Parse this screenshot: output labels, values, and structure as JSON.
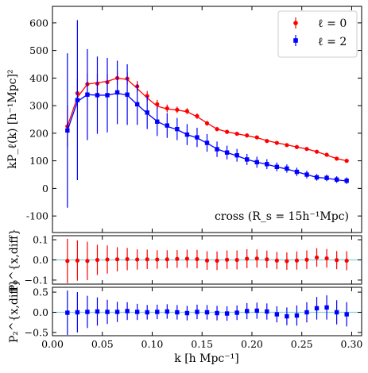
{
  "chart_data": [
    {
      "type": "line",
      "panel": "main",
      "ylabel": "kP_ℓ(k) [h⁻¹Mpc]²",
      "xlim": [
        0.0,
        0.31
      ],
      "ylim": [
        -160,
        660
      ],
      "yticks": [
        -100,
        0,
        100,
        200,
        300,
        400,
        500,
        600
      ],
      "annotation": "cross (R_s = 15h⁻¹Mpc)",
      "legend_position": "top-right",
      "series": [
        {
          "name": "ℓ = 0",
          "color": "#ff0000",
          "marker": "circle",
          "x": [
            0.015,
            0.025,
            0.035,
            0.045,
            0.055,
            0.065,
            0.075,
            0.085,
            0.095,
            0.105,
            0.115,
            0.125,
            0.135,
            0.145,
            0.155,
            0.165,
            0.175,
            0.185,
            0.195,
            0.205,
            0.215,
            0.225,
            0.235,
            0.245,
            0.255,
            0.265,
            0.275,
            0.285,
            0.295
          ],
          "y": [
            225,
            345,
            378,
            380,
            385,
            400,
            398,
            370,
            335,
            305,
            290,
            285,
            280,
            262,
            236,
            215,
            205,
            198,
            192,
            185,
            172,
            165,
            157,
            150,
            143,
            133,
            122,
            108,
            100
          ],
          "yerr": [
            75,
            50,
            40,
            35,
            30,
            25,
            22,
            20,
            18,
            16,
            14,
            12,
            11,
            10,
            9,
            8,
            8,
            7,
            7,
            6,
            6,
            6,
            5,
            5,
            5,
            5,
            5,
            5,
            4
          ],
          "model": [
            225,
            330,
            378,
            383,
            388,
            400,
            395,
            362,
            328,
            298,
            288,
            284,
            278,
            260,
            237,
            215,
            205,
            198,
            191,
            184,
            173,
            165,
            158,
            150,
            143,
            133,
            121,
            108,
            100
          ]
        },
        {
          "name": "ℓ = 2",
          "color": "#0000ff",
          "marker": "square",
          "x": [
            0.015,
            0.025,
            0.035,
            0.045,
            0.055,
            0.065,
            0.075,
            0.085,
            0.095,
            0.105,
            0.115,
            0.125,
            0.135,
            0.145,
            0.155,
            0.165,
            0.175,
            0.185,
            0.195,
            0.205,
            0.215,
            0.225,
            0.235,
            0.245,
            0.255,
            0.265,
            0.275,
            0.285,
            0.295
          ],
          "y": [
            210,
            320,
            340,
            338,
            338,
            348,
            340,
            305,
            275,
            242,
            228,
            215,
            195,
            185,
            165,
            142,
            130,
            120,
            105,
            95,
            88,
            78,
            72,
            60,
            50,
            40,
            38,
            32,
            28
          ],
          "yerr": [
            280,
            290,
            165,
            140,
            135,
            115,
            110,
            75,
            60,
            52,
            45,
            40,
            38,
            35,
            32,
            28,
            25,
            23,
            20,
            20,
            18,
            16,
            15,
            15,
            14,
            12,
            12,
            12,
            12
          ],
          "model": [
            210,
            315,
            340,
            338,
            338,
            345,
            338,
            304,
            272,
            243,
            225,
            213,
            195,
            183,
            164,
            143,
            130,
            118,
            105,
            95,
            87,
            78,
            70,
            60,
            50,
            40,
            37,
            31,
            27
          ]
        }
      ]
    },
    {
      "type": "scatter",
      "panel": "residual-0",
      "ylabel": "P₀^{x,diff}",
      "ylim": [
        -0.12,
        0.12
      ],
      "yticks": [
        -0.1,
        0.0,
        0.1
      ],
      "color": "#ff0000",
      "marker": "circle",
      "reference_line": {
        "y": 0.0,
        "color": "#7fd4d4"
      },
      "x": [
        0.015,
        0.025,
        0.035,
        0.045,
        0.055,
        0.065,
        0.075,
        0.085,
        0.095,
        0.105,
        0.115,
        0.125,
        0.135,
        0.145,
        0.155,
        0.165,
        0.175,
        0.185,
        0.195,
        0.205,
        0.215,
        0.225,
        0.235,
        0.245,
        0.255,
        0.265,
        0.275,
        0.285,
        0.295
      ],
      "y": [
        -0.005,
        -0.003,
        -0.005,
        0.0,
        0.002,
        0.003,
        0.004,
        0.002,
        0.003,
        0.002,
        0.003,
        0.005,
        0.006,
        0.004,
        -0.003,
        -0.004,
        0.001,
        0.0,
        0.006,
        0.007,
        0.003,
        -0.003,
        -0.006,
        -0.003,
        0.001,
        0.012,
        0.008,
        -0.001,
        -0.004
      ],
      "yerr": [
        0.11,
        0.1,
        0.095,
        0.075,
        0.07,
        0.06,
        0.055,
        0.05,
        0.048,
        0.046,
        0.045,
        0.044,
        0.045,
        0.046,
        0.046,
        0.046,
        0.046,
        0.047,
        0.047,
        0.045,
        0.043,
        0.043,
        0.043,
        0.045,
        0.046,
        0.046,
        0.046,
        0.045,
        0.047
      ]
    },
    {
      "type": "scatter",
      "panel": "residual-2",
      "xlabel": "k [h Mpc⁻¹]",
      "ylabel": "P₂^{x,diff}",
      "ylim": [
        -0.58,
        0.62
      ],
      "yticks": [
        -0.5,
        0.0,
        0.5
      ],
      "xticks": [
        0.0,
        0.05,
        0.1,
        0.15,
        0.2,
        0.25,
        0.3
      ],
      "xtick_labels": [
        "0.00",
        "0.05",
        "0.10",
        "0.15",
        "0.20",
        "0.25",
        "0.30"
      ],
      "color": "#0000ff",
      "marker": "square",
      "reference_line": {
        "y": 0.0,
        "color": "#7fd4d4"
      },
      "x": [
        0.015,
        0.025,
        0.035,
        0.045,
        0.055,
        0.065,
        0.075,
        0.085,
        0.095,
        0.105,
        0.115,
        0.125,
        0.135,
        0.145,
        0.155,
        0.165,
        0.175,
        0.185,
        0.195,
        0.205,
        0.215,
        0.225,
        0.235,
        0.245,
        0.255,
        0.265,
        0.275,
        0.285,
        0.295
      ],
      "y": [
        -0.01,
        0.0,
        0.01,
        0.02,
        0.01,
        0.01,
        0.03,
        0.01,
        0.0,
        0.01,
        0.02,
        0.0,
        -0.02,
        0.01,
        0.0,
        -0.02,
        -0.03,
        -0.01,
        0.03,
        0.04,
        0.02,
        -0.05,
        -0.1,
        -0.08,
        0.0,
        0.1,
        0.12,
        0.0,
        -0.05
      ],
      "yerr": [
        0.55,
        0.5,
        0.4,
        0.35,
        0.3,
        0.25,
        0.22,
        0.2,
        0.18,
        0.18,
        0.18,
        0.18,
        0.18,
        0.18,
        0.18,
        0.18,
        0.18,
        0.18,
        0.2,
        0.2,
        0.2,
        0.2,
        0.22,
        0.25,
        0.25,
        0.28,
        0.3,
        0.3,
        0.3
      ]
    }
  ]
}
